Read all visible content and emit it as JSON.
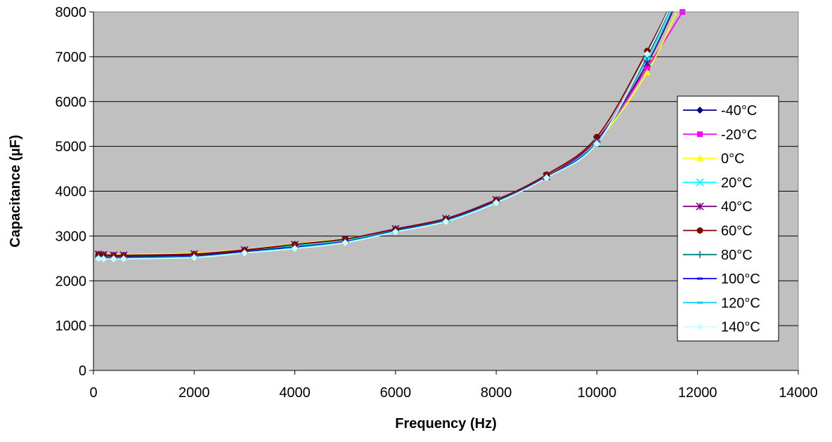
{
  "chart_data": {
    "type": "line",
    "xlabel": "Frequency (Hz)",
    "ylabel": "Capacitance (µF)",
    "xlim": [
      0,
      14000
    ],
    "ylim": [
      0,
      8000
    ],
    "xticks": [
      "0",
      "2000",
      "4000",
      "6000",
      "8000",
      "10000",
      "12000",
      "14000"
    ],
    "yticks": [
      "0",
      "1000",
      "2000",
      "3000",
      "4000",
      "5000",
      "6000",
      "7000",
      "8000"
    ],
    "grid": "horizontal",
    "plot_background": "#c0c0c0",
    "legend_position": "right",
    "x": [
      100,
      200,
      400,
      600,
      2000,
      3000,
      4000,
      5000,
      6000,
      7000,
      8000,
      9000,
      10000,
      11000,
      11700
    ],
    "series": [
      {
        "name": "-40°C",
        "color": "#000080",
        "marker": "diamond",
        "values": [
          2570,
          2560,
          2550,
          2550,
          2570,
          2660,
          2760,
          2880,
          3110,
          3340,
          3780,
          4340,
          5130,
          6850,
          8600
        ]
      },
      {
        "name": "-20°C",
        "color": "#ff00ff",
        "marker": "square",
        "values": [
          2600,
          2590,
          2580,
          2580,
          2600,
          2690,
          2800,
          2930,
          3150,
          3380,
          3800,
          4350,
          5110,
          6750,
          8000
        ]
      },
      {
        "name": "0°C",
        "color": "#ffff00",
        "marker": "triangle",
        "values": [
          2600,
          2590,
          2590,
          2590,
          2620,
          2700,
          2820,
          2940,
          3150,
          3380,
          3800,
          4360,
          5120,
          6650,
          8300
        ]
      },
      {
        "name": "20°C",
        "color": "#00ffff",
        "marker": "x",
        "values": [
          2580,
          2570,
          2570,
          2570,
          2590,
          2680,
          2790,
          2910,
          3130,
          3370,
          3790,
          4330,
          5100,
          6900,
          8600
        ]
      },
      {
        "name": "40°C",
        "color": "#800080",
        "marker": "star",
        "values": [
          2590,
          2580,
          2570,
          2570,
          2600,
          2690,
          2810,
          2930,
          3160,
          3390,
          3810,
          4330,
          5150,
          6850,
          8500
        ]
      },
      {
        "name": "60°C",
        "color": "#800000",
        "marker": "circle",
        "values": [
          2580,
          2570,
          2560,
          2560,
          2590,
          2680,
          2810,
          2930,
          3150,
          3380,
          3800,
          4370,
          5210,
          7130,
          8700
        ]
      },
      {
        "name": "80°C",
        "color": "#008080",
        "marker": "plus",
        "values": [
          2540,
          2530,
          2520,
          2520,
          2550,
          2640,
          2750,
          2880,
          3120,
          3350,
          3770,
          4320,
          5090,
          7000,
          8700
        ]
      },
      {
        "name": "100°C",
        "color": "#0000ff",
        "marker": "dash",
        "values": [
          2520,
          2510,
          2510,
          2510,
          2540,
          2640,
          2740,
          2870,
          3110,
          3340,
          3760,
          4310,
          5080,
          7050,
          8700
        ]
      },
      {
        "name": "120°C",
        "color": "#00ccff",
        "marker": "dash",
        "values": [
          2510,
          2500,
          2500,
          2500,
          2530,
          2630,
          2730,
          2860,
          3100,
          3330,
          3750,
          4300,
          5070,
          7050,
          8700
        ]
      },
      {
        "name": "140°C",
        "color": "#ccffff",
        "marker": "diamond",
        "values": [
          2500,
          2490,
          2490,
          2490,
          2520,
          2620,
          2720,
          2850,
          3090,
          3320,
          3740,
          4300,
          5060,
          7060,
          8700
        ]
      }
    ]
  }
}
